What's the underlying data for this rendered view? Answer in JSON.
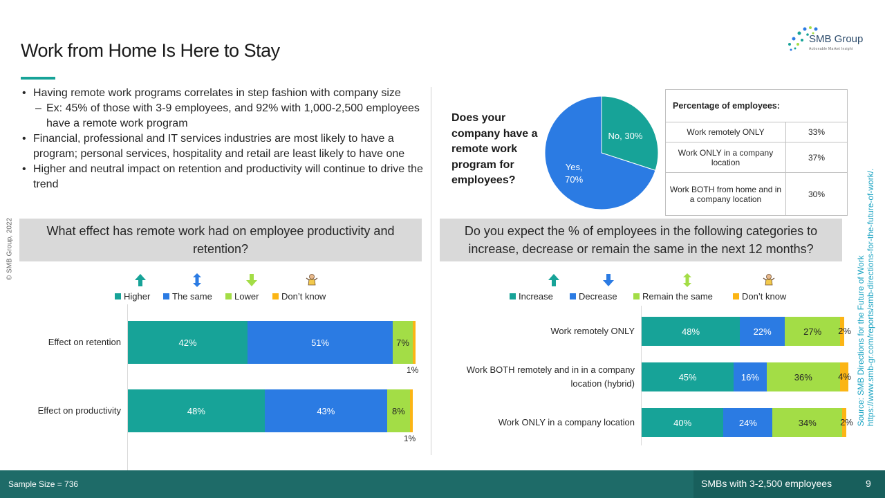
{
  "title": "Work from Home Is Here to Stay",
  "logo": {
    "name": "SMB Group",
    "tagline": "Actionable Market Insight"
  },
  "copyright": "© SMB Group, 2022",
  "bullets": [
    {
      "level": 1,
      "text": "Having remote work programs correlates in step fashion with company size"
    },
    {
      "level": 2,
      "text": "Ex: 45% of those with 3-9 employees, and 92% with 1,000-2,500 employees have a remote work program"
    },
    {
      "level": 1,
      "text": "Financial, professional and IT services industries are most likely to have a program; personal services, hospitality and retail are least likely to have one"
    },
    {
      "level": 1,
      "text": "Higher and neutral impact on retention and productivity will continue to drive the trend"
    }
  ],
  "pie_question": "Does your company have a remote work program for employees?",
  "employee_table": {
    "header": "Percentage of employees:",
    "rows": [
      {
        "label": "Work remotely ONLY",
        "value": "33%"
      },
      {
        "label": "Work ONLY in a company location",
        "value": "37%"
      },
      {
        "label": "Work BOTH from home and in a company location",
        "value": "30%"
      }
    ]
  },
  "left_question": "What effect has remote work had on employee productivity and retention?",
  "right_question": "Do you expect the % of employees in the following categories to increase, decrease or remain the same in the next 12 months?",
  "source": {
    "line1": "Source:  SMB Directions for the Future of Work",
    "line2": "https://www.smb-gr.com/reports/smb-directions-for-the-future-of-work/."
  },
  "footer": {
    "sample": "Sample Size = 736",
    "segment": "SMBs with 3-2,500 employees",
    "page": "9"
  },
  "colors": {
    "teal": "#17a398",
    "blue": "#2b7be3",
    "green": "#a3dd46",
    "orange": "#fbb515",
    "footer": "#1e6b68"
  },
  "chart_data": [
    {
      "type": "pie",
      "labels": [
        "Yes",
        "No"
      ],
      "values": [
        70,
        30
      ],
      "display": [
        "Yes,\n70%",
        "No, 30%"
      ],
      "colors": [
        "#2b7be3",
        "#17a398"
      ]
    },
    {
      "type": "bar",
      "orientation": "horizontal",
      "stacked": true,
      "categories": [
        "Effect on retention",
        "Effect on productivity"
      ],
      "series": [
        {
          "name": "Higher",
          "values": [
            42,
            48
          ],
          "color": "#17a398",
          "icon": "up-arrow-icon"
        },
        {
          "name": "The same",
          "values": [
            51,
            43
          ],
          "color": "#2b7be3",
          "icon": "up-down-arrow-icon"
        },
        {
          "name": "Lower",
          "values": [
            7,
            8
          ],
          "color": "#a3dd46",
          "icon": "down-arrow-icon"
        },
        {
          "name": "Don’t know",
          "values": [
            1,
            1
          ],
          "color": "#fbb515",
          "icon": "shrugging-person-icon"
        }
      ],
      "legend": "top"
    },
    {
      "type": "bar",
      "orientation": "horizontal",
      "stacked": true,
      "categories": [
        "Work remotely ONLY",
        "Work BOTH remotely and in in a company location (hybrid)",
        "Work ONLY in a company location"
      ],
      "series": [
        {
          "name": "Increase",
          "values": [
            48,
            45,
            40
          ],
          "color": "#17a398",
          "icon": "up-arrow-icon"
        },
        {
          "name": "Decrease",
          "values": [
            22,
            16,
            24
          ],
          "color": "#2b7be3",
          "icon": "down-arrow-icon"
        },
        {
          "name": "Remain the same",
          "values": [
            27,
            36,
            34
          ],
          "color": "#a3dd46",
          "icon": "up-down-arrow-icon"
        },
        {
          "name": "Don’t know",
          "values": [
            2,
            4,
            2
          ],
          "color": "#fbb515",
          "icon": "shrugging-person-icon"
        }
      ],
      "legend": "top"
    }
  ]
}
